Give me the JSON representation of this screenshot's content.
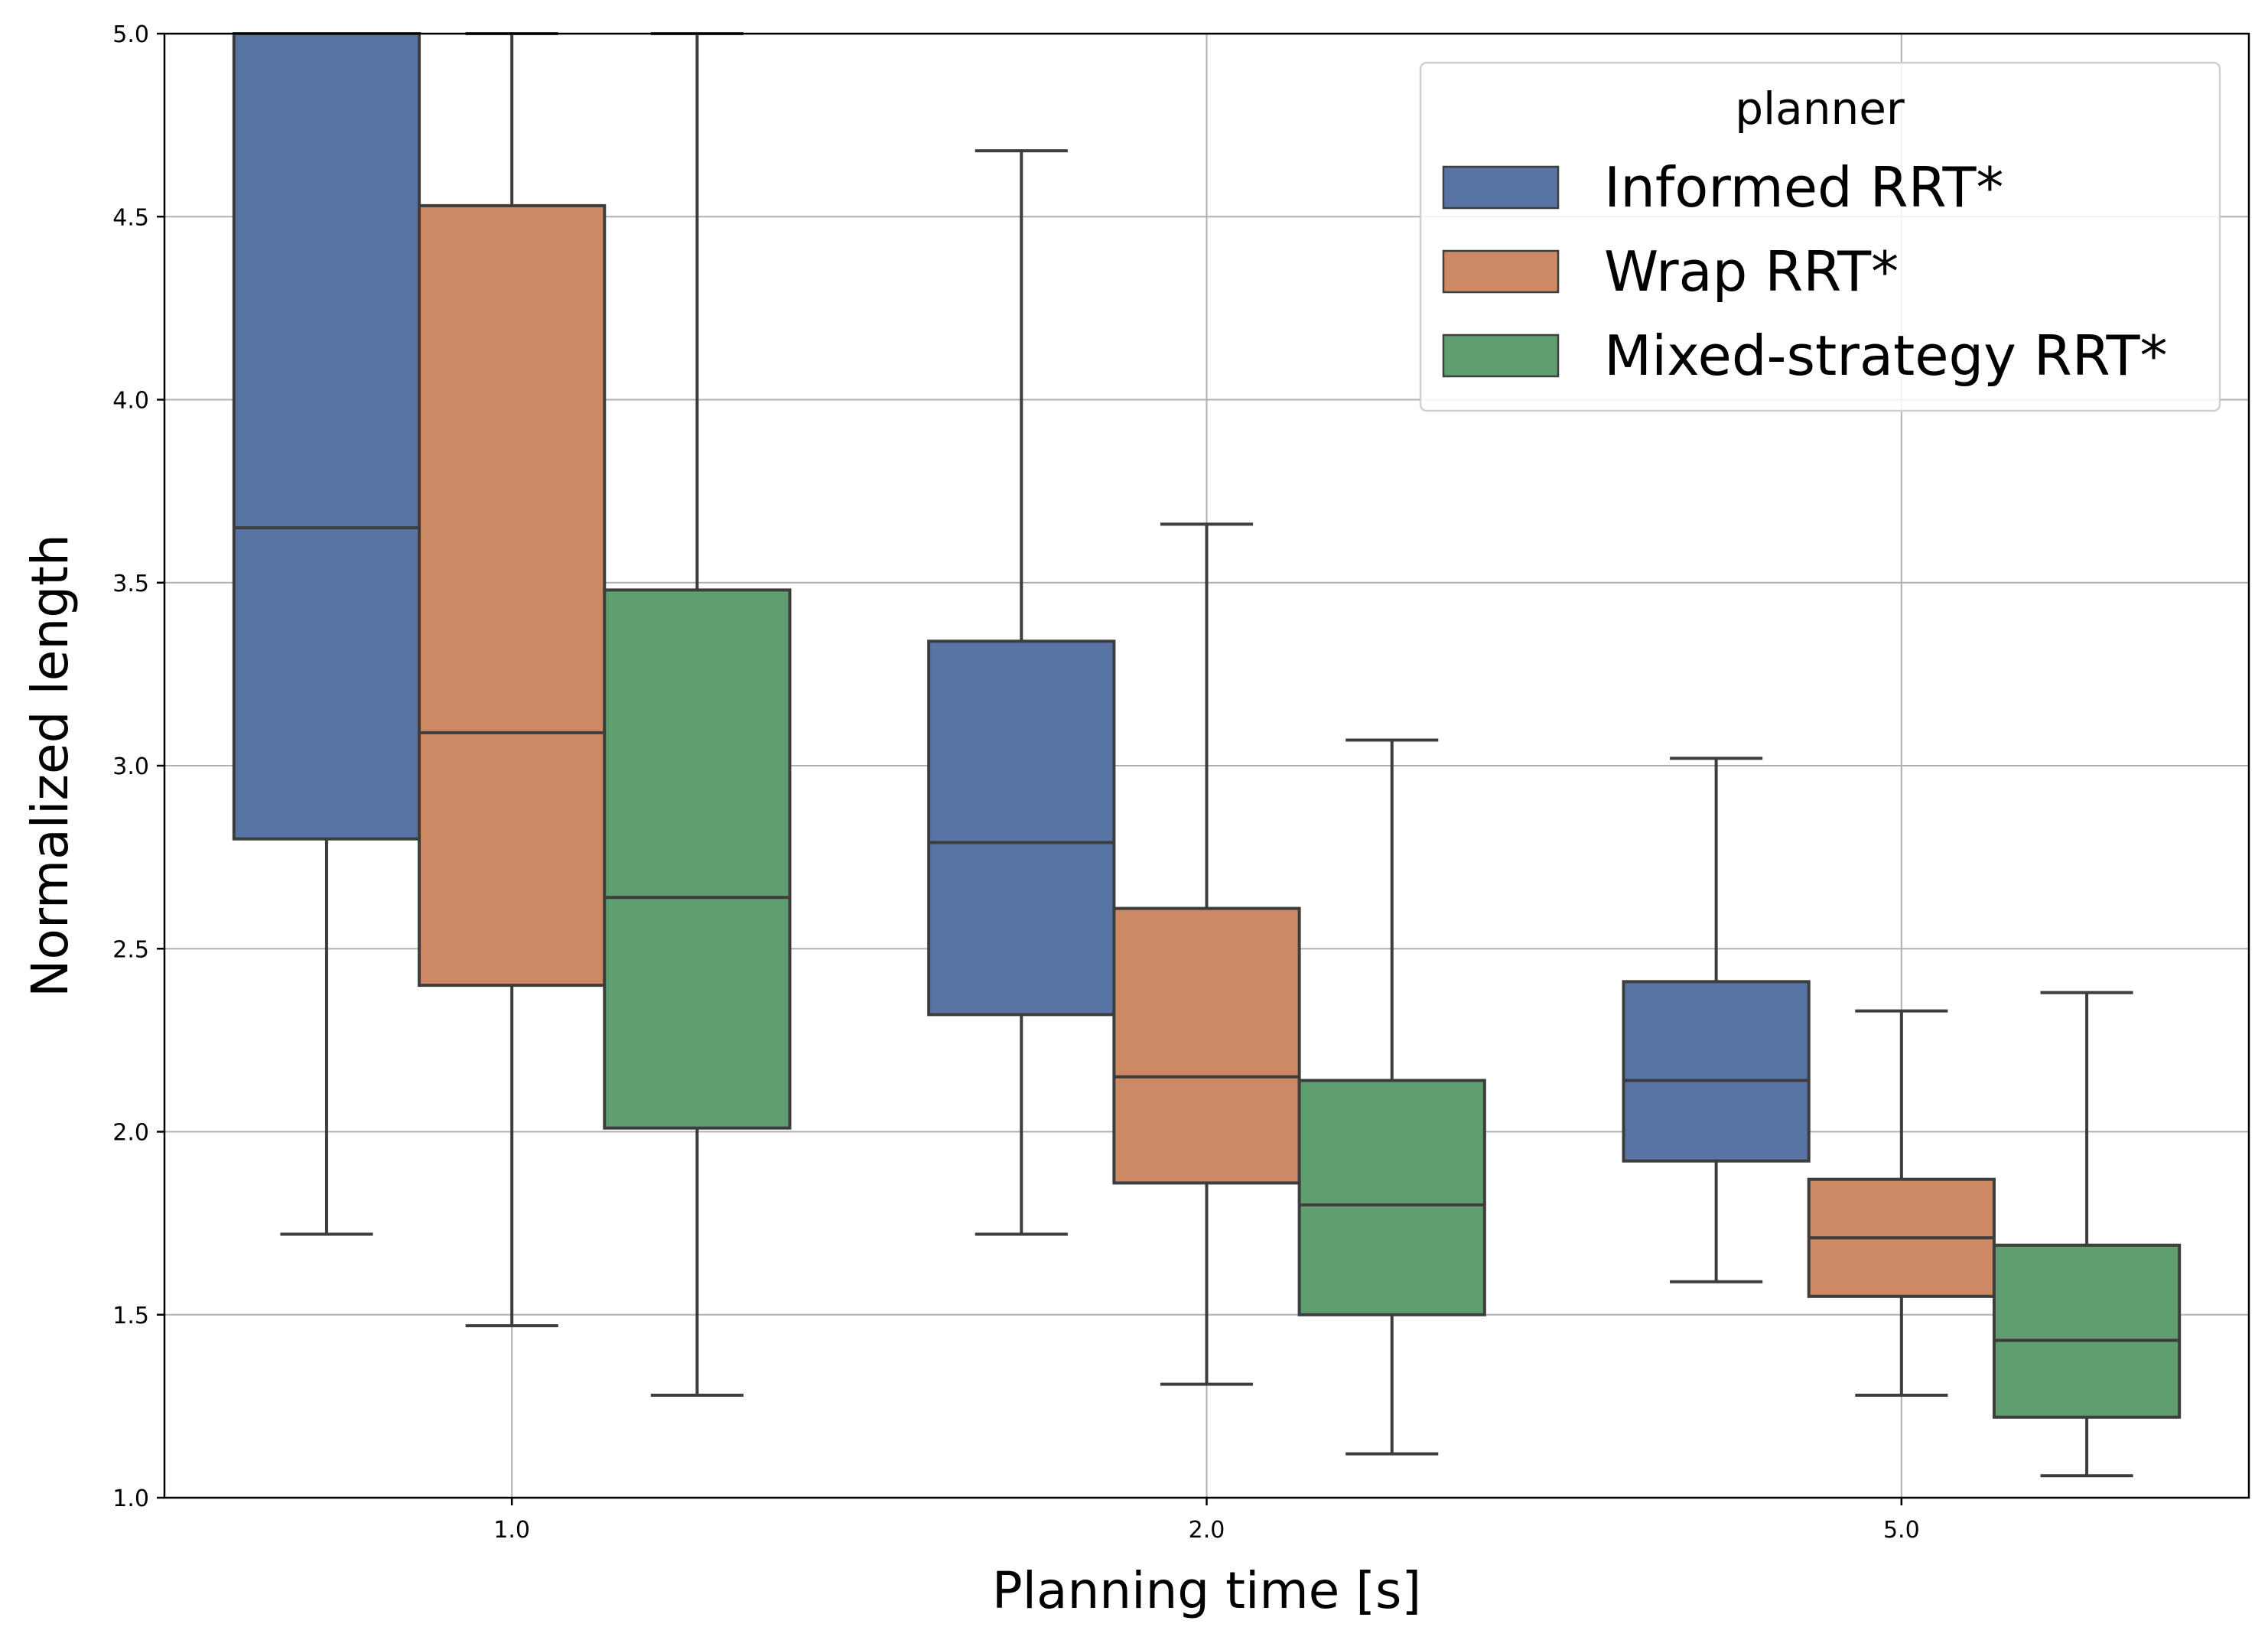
{
  "chart_data": {
    "type": "boxplot",
    "title": "",
    "xlabel": "Planning time [s]",
    "ylabel": "Normalized length",
    "ylim": [
      1.0,
      5.0
    ],
    "yticks": [
      "1.0",
      "1.5",
      "2.0",
      "2.5",
      "3.0",
      "3.5",
      "4.0",
      "4.5",
      "5.0"
    ],
    "categories": [
      "1.0",
      "2.0",
      "5.0"
    ],
    "grid": true,
    "legend": {
      "title": "planner",
      "position": "top-right"
    },
    "series": [
      {
        "name": "Informed RRT*",
        "color": "#5874a4",
        "boxes": [
          {
            "whislo": 1.72,
            "q1": 2.8,
            "med": 3.65,
            "q3": 5.0,
            "whishi": 5.0
          },
          {
            "whislo": 1.72,
            "q1": 2.32,
            "med": 2.79,
            "q3": 3.34,
            "whishi": 4.68
          },
          {
            "whislo": 1.59,
            "q1": 1.92,
            "med": 2.14,
            "q3": 2.41,
            "whishi": 3.02
          }
        ]
      },
      {
        "name": "Wrap RRT*",
        "color": "#cd8963",
        "boxes": [
          {
            "whislo": 1.47,
            "q1": 2.4,
            "med": 3.09,
            "q3": 4.53,
            "whishi": 5.0
          },
          {
            "whislo": 1.31,
            "q1": 1.86,
            "med": 2.15,
            "q3": 2.61,
            "whishi": 3.66
          },
          {
            "whislo": 1.28,
            "q1": 1.55,
            "med": 1.71,
            "q3": 1.87,
            "whishi": 2.33
          }
        ]
      },
      {
        "name": "Mixed-strategy RRT*",
        "color": "#5f9e6e",
        "boxes": [
          {
            "whislo": 1.28,
            "q1": 2.01,
            "med": 2.64,
            "q3": 3.48,
            "whishi": 5.0
          },
          {
            "whislo": 1.12,
            "q1": 1.5,
            "med": 1.8,
            "q3": 2.14,
            "whishi": 3.07
          },
          {
            "whislo": 1.06,
            "q1": 1.22,
            "med": 1.43,
            "q3": 1.69,
            "whishi": 2.38
          }
        ]
      }
    ]
  }
}
